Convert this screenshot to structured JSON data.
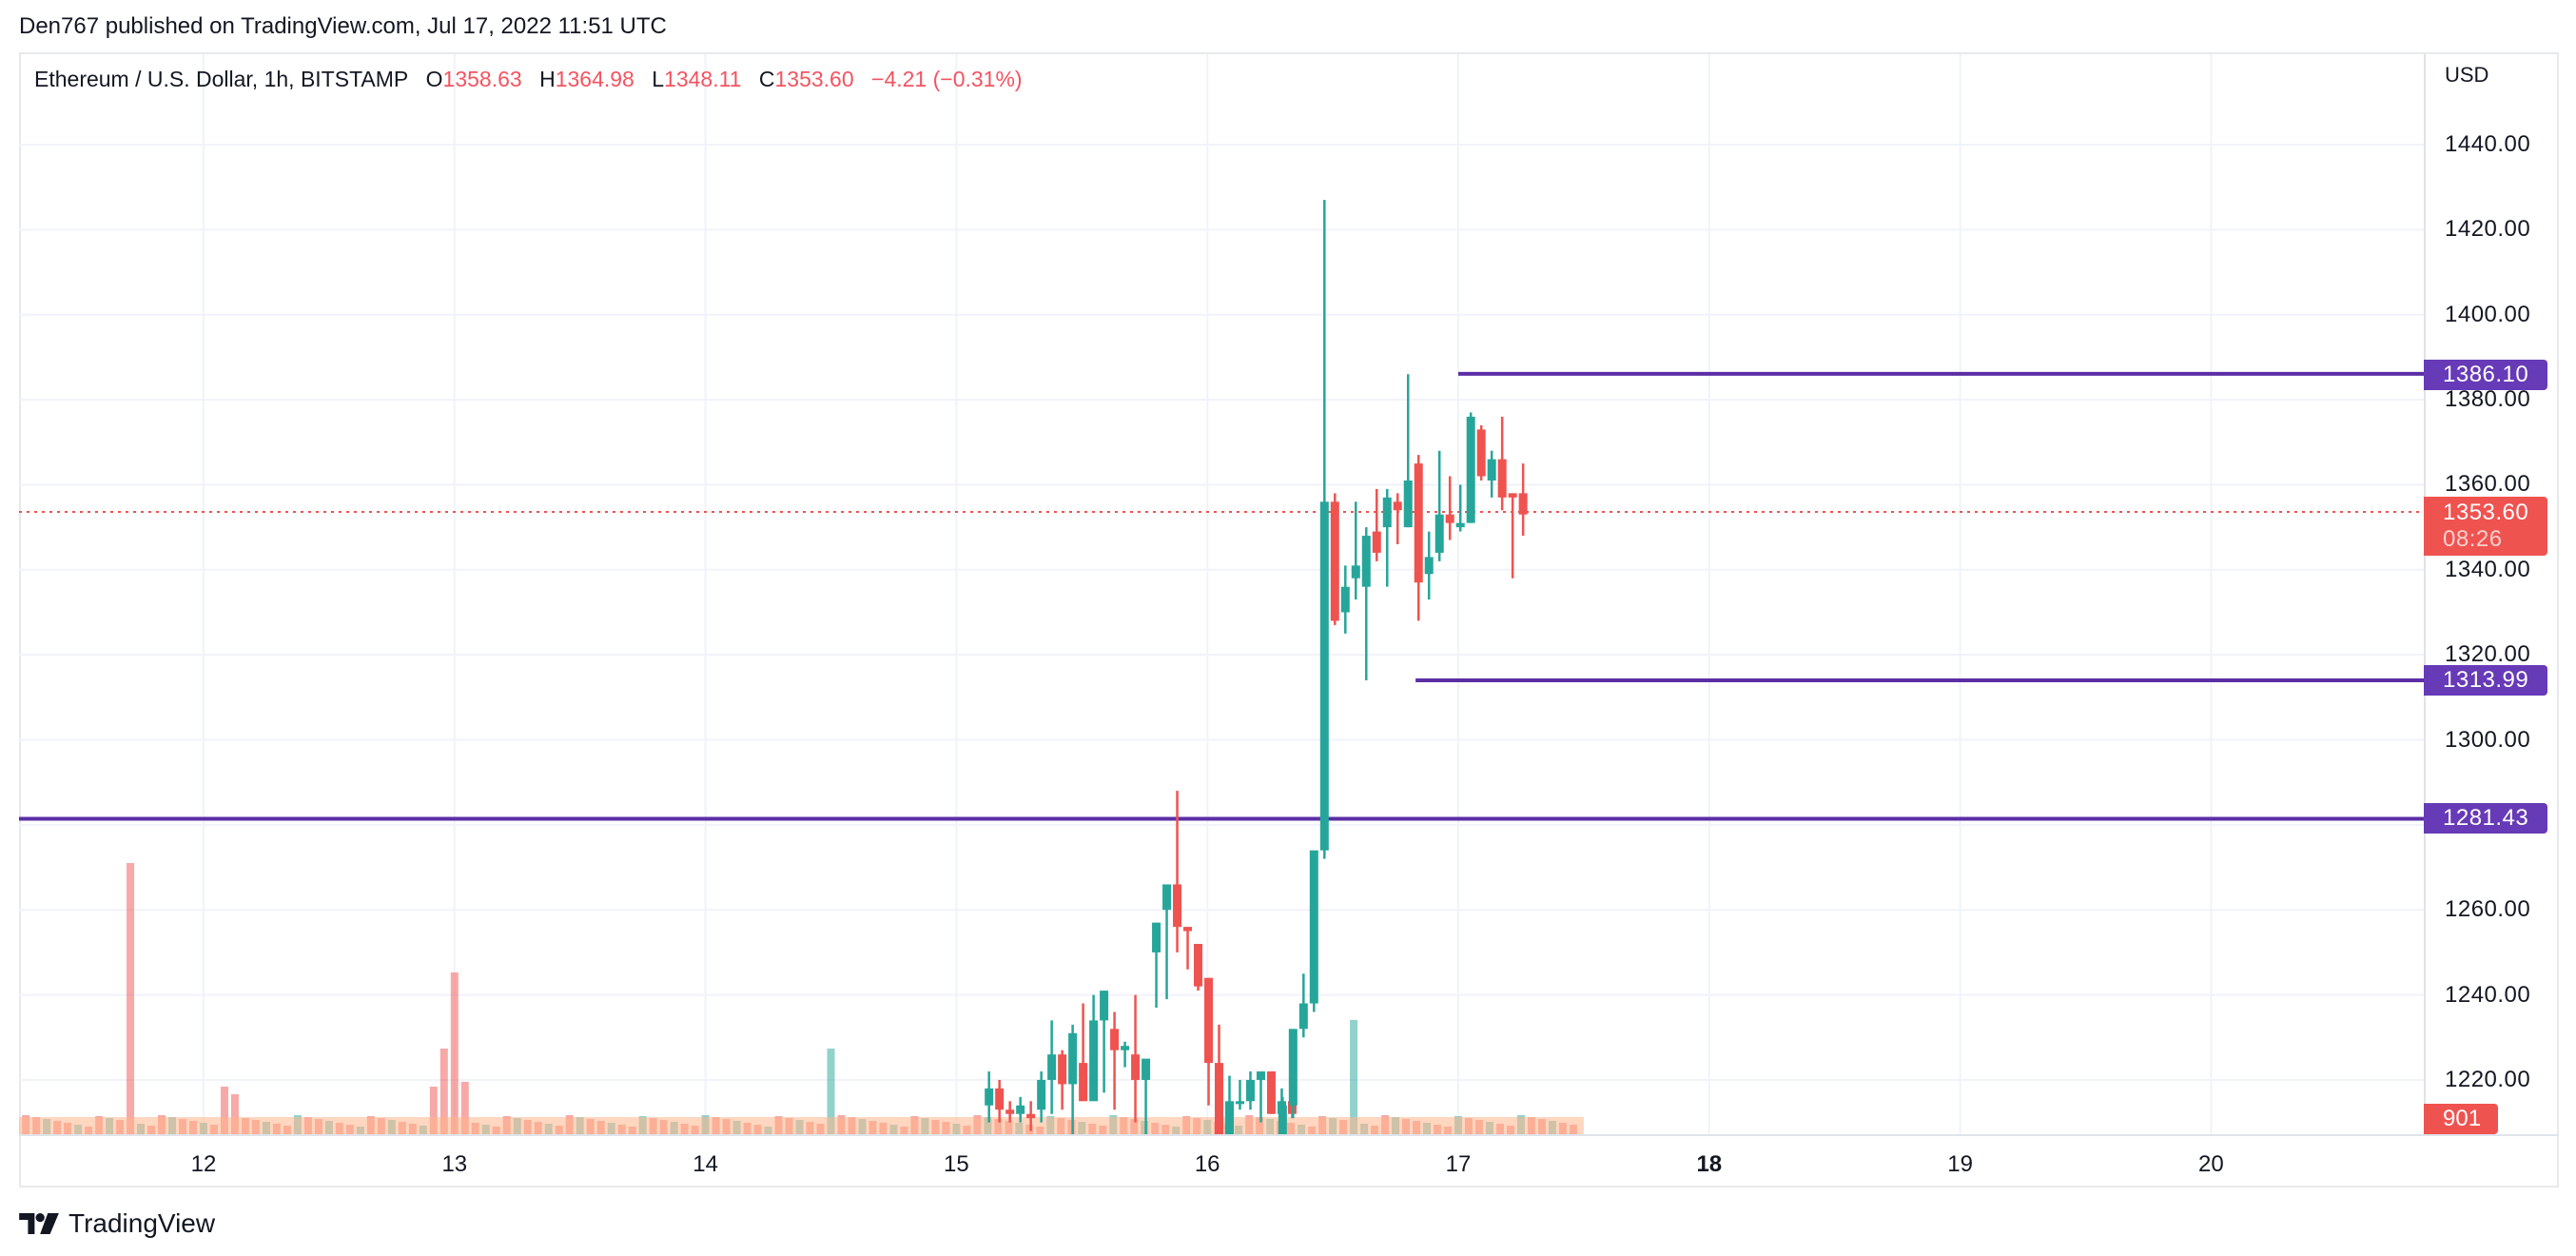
{
  "header": {
    "publisher_line": "Den767 published on TradingView.com, Jul 17, 2022 11:51 UTC"
  },
  "legend": {
    "symbol": "Ethereum / U.S. Dollar, 1h, BITSTAMP",
    "open_label": "O",
    "open": "1358.63",
    "high_label": "H",
    "high": "1364.98",
    "low_label": "L",
    "low": "1348.11",
    "close_label": "C",
    "close": "1353.60",
    "change": "−4.21 (−0.31%)"
  },
  "price_axis": {
    "currency": "USD",
    "ticks": [
      "1440.00",
      "1420.00",
      "1400.00",
      "1380.00",
      "1360.00",
      "1340.00",
      "1320.00",
      "1300.00",
      "1280.00",
      "1260.00",
      "1240.00",
      "1220.00"
    ]
  },
  "badges": {
    "upper_level": "1386.10",
    "current_price": "1353.60",
    "countdown": "08:26",
    "lower_level": "1313.99",
    "support_level": "1281.43",
    "volume": "901"
  },
  "time_axis": {
    "ticks": [
      "12",
      "13",
      "14",
      "15",
      "16",
      "17",
      "18",
      "19",
      "20"
    ],
    "bold_tick": "18"
  },
  "branding": {
    "name": "TradingView"
  },
  "colors": {
    "up": "#26a69a",
    "down": "#ef5350",
    "level_line": "#5b2ea6",
    "badge_purple": "#673ab7",
    "grid": "#f0f3fa",
    "volume_ma": "#ffb48a"
  },
  "chart_data": {
    "type": "candlestick",
    "title": "Ethereum / U.S. Dollar, 1h, BITSTAMP",
    "xlabel": "",
    "ylabel": "USD",
    "ylim": [
      1210,
      1450
    ],
    "x_ticks": [
      "12",
      "13",
      "14",
      "15",
      "16",
      "17",
      "18",
      "19",
      "20"
    ],
    "horizontal_levels": [
      {
        "price": 1386.1,
        "from_day": 17.0,
        "label": "1386.10"
      },
      {
        "price": 1313.99,
        "from_day": 16.83,
        "label": "1313.99"
      },
      {
        "price": 1281.43,
        "from_day": 11.2,
        "label": "1281.43"
      }
    ],
    "last_price": 1353.6,
    "candles_start_day": 15.13,
    "candles_hour_step": 0.04167,
    "candles": [
      [
        1214,
        1222,
        1210,
        1218
      ],
      [
        1218,
        1220,
        1210,
        1213
      ],
      [
        1213,
        1215,
        1210,
        1212
      ],
      [
        1212,
        1216,
        1210,
        1214
      ],
      [
        1212,
        1215,
        1208,
        1211
      ],
      [
        1213,
        1222,
        1210,
        1220
      ],
      [
        1220,
        1234,
        1212,
        1226
      ],
      [
        1226,
        1227,
        1213,
        1219
      ],
      [
        1219,
        1233,
        1206,
        1231
      ],
      [
        1224,
        1238,
        1216,
        1215
      ],
      [
        1215,
        1240,
        1217,
        1234
      ],
      [
        1234,
        1241,
        1217,
        1241
      ],
      [
        1232,
        1236,
        1213,
        1227
      ],
      [
        1227,
        1229,
        1223,
        1228
      ],
      [
        1226,
        1240,
        1210,
        1220
      ],
      [
        1220,
        1223,
        1206,
        1225
      ],
      [
        1250,
        1257,
        1237,
        1257
      ],
      [
        1260,
        1265,
        1239,
        1266
      ],
      [
        1266,
        1288,
        1250,
        1256
      ],
      [
        1256,
        1255,
        1246,
        1255
      ],
      [
        1252,
        1250,
        1241,
        1242
      ],
      [
        1244,
        1244,
        1214,
        1224
      ],
      [
        1224,
        1233,
        1206,
        1205
      ],
      [
        1205,
        1221,
        1205,
        1215
      ],
      [
        1215,
        1220,
        1213,
        1215
      ],
      [
        1215,
        1222,
        1213,
        1220
      ],
      [
        1220,
        1221,
        1210,
        1222
      ],
      [
        1222,
        1222,
        1212,
        1212
      ],
      [
        1212,
        1218,
        1210,
        1215
      ],
      [
        1215,
        1218,
        1211,
        1212
      ]
    ],
    "candles_b_start_day": 16.3,
    "candles_b": [
      [
        1206,
        1216,
        1205,
        1214
      ],
      [
        1214,
        1232,
        1211,
        1232
      ],
      [
        1232,
        1245,
        1230,
        1238
      ],
      [
        1238,
        1258,
        1236,
        1274
      ],
      [
        1274,
        1427,
        1272,
        1356
      ],
      [
        1356,
        1358,
        1327,
        1328
      ],
      [
        1330,
        1341,
        1325,
        1336
      ],
      [
        1338,
        1356,
        1333,
        1341
      ],
      [
        1336,
        1350,
        1314,
        1348
      ],
      [
        1349,
        1359,
        1342,
        1344
      ],
      [
        1350,
        1359,
        1336,
        1357
      ],
      [
        1356,
        1358,
        1346,
        1354
      ],
      [
        1350,
        1386,
        1350,
        1361
      ],
      [
        1365,
        1367,
        1328,
        1337
      ],
      [
        1339,
        1349,
        1333,
        1343
      ],
      [
        1344,
        1368,
        1342,
        1353
      ],
      [
        1353,
        1362,
        1347,
        1351
      ],
      [
        1350,
        1360,
        1349,
        1351
      ],
      [
        1351,
        1377,
        1351,
        1376
      ],
      [
        1373,
        1374,
        1361,
        1362
      ],
      [
        1361,
        1368,
        1357,
        1366
      ],
      [
        1366,
        1376,
        1354,
        1357
      ],
      [
        1358,
        1358,
        1338,
        1357
      ],
      [
        1358,
        1365,
        1348,
        1353
      ]
    ],
    "volume_scale_max": 12000,
    "volumes_note": "relative bar heights, base-aligned; tallest red spike near Jul 11 18:00"
  }
}
